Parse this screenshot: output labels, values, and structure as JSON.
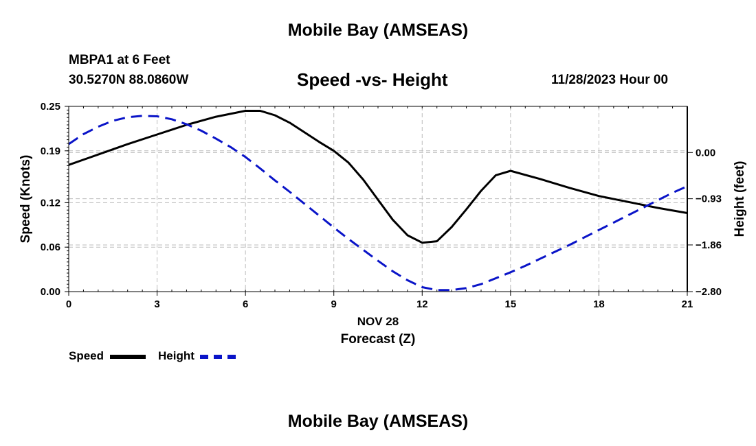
{
  "header": {
    "main_title": "Mobile Bay (AMSEAS)",
    "station": "MBPA1 at 6 Feet",
    "coords": "30.5270N  88.0860W",
    "subtitle": "Speed -vs- Height",
    "datetime": "11/28/2023 Hour 00",
    "footer_title": "Mobile Bay (AMSEAS)"
  },
  "legend": {
    "speed_label": "Speed",
    "height_label": "Height"
  },
  "colors": {
    "speed": "#000000",
    "height": "#0a14c8",
    "grid": "#bbbbbb"
  },
  "chart_data": {
    "type": "line",
    "title": "Speed -vs- Height",
    "xlabel": "Forecast (Z)",
    "xlabel_date": "NOV 28",
    "ylabel_left": "Speed (Knots)",
    "ylabel_right": "Height (feet)",
    "xlim": [
      0,
      21
    ],
    "ylim_left": [
      0,
      0.25
    ],
    "ylim_right": [
      -2.8,
      0.93
    ],
    "xticks": [
      0,
      3,
      6,
      9,
      12,
      15,
      18,
      21
    ],
    "xtick_labels": [
      "0",
      "3",
      "6",
      "9",
      "12",
      "15",
      "18",
      "21"
    ],
    "yticks_left": [
      0.0,
      0.06,
      0.12,
      0.19,
      0.25
    ],
    "ytick_labels_left": [
      "0.00",
      "0.06",
      "0.12",
      "0.19",
      "0.25"
    ],
    "yticks_right": [
      0.0,
      -0.93,
      -1.86,
      -2.8
    ],
    "ytick_labels_right": [
      "0.00",
      "−0.93",
      "−1.86",
      "−2.80"
    ],
    "series": [
      {
        "name": "Speed",
        "axis": "left",
        "style": "solid",
        "x": [
          0,
          1,
          2,
          3,
          4,
          5,
          6,
          6.5,
          7,
          7.5,
          8,
          8.5,
          9,
          9.5,
          10,
          10.5,
          11,
          11.5,
          12,
          12.5,
          13,
          13.5,
          14,
          14.5,
          15,
          16,
          17,
          18,
          19,
          20,
          21
        ],
        "values": [
          0.171,
          0.185,
          0.199,
          0.212,
          0.225,
          0.236,
          0.244,
          0.244,
          0.238,
          0.228,
          0.215,
          0.202,
          0.19,
          0.174,
          0.151,
          0.124,
          0.097,
          0.076,
          0.066,
          0.068,
          0.087,
          0.111,
          0.136,
          0.157,
          0.163,
          0.152,
          0.14,
          0.129,
          0.121,
          0.113,
          0.106
        ]
      },
      {
        "name": "Height",
        "axis": "right",
        "style": "dashed",
        "x": [
          0,
          0.5,
          1,
          1.5,
          2,
          2.5,
          3,
          3.5,
          4,
          4.5,
          5,
          5.5,
          6,
          6.5,
          7,
          7.5,
          8,
          8.5,
          9,
          9.5,
          10,
          10.5,
          11,
          11.5,
          12,
          12.5,
          13,
          13.5,
          14,
          14.5,
          15,
          15.5,
          16,
          16.5,
          17,
          17.5,
          18,
          18.5,
          19,
          19.5,
          20,
          20.5,
          21
        ],
        "values": [
          0.17,
          0.37,
          0.52,
          0.64,
          0.71,
          0.74,
          0.73,
          0.67,
          0.57,
          0.44,
          0.28,
          0.11,
          -0.09,
          -0.32,
          -0.56,
          -0.79,
          -1.03,
          -1.27,
          -1.51,
          -1.74,
          -1.96,
          -2.18,
          -2.39,
          -2.57,
          -2.71,
          -2.77,
          -2.77,
          -2.73,
          -2.65,
          -2.53,
          -2.41,
          -2.28,
          -2.14,
          -2.0,
          -1.86,
          -1.71,
          -1.56,
          -1.41,
          -1.26,
          -1.11,
          -0.96,
          -0.81,
          -0.68
        ]
      }
    ]
  }
}
